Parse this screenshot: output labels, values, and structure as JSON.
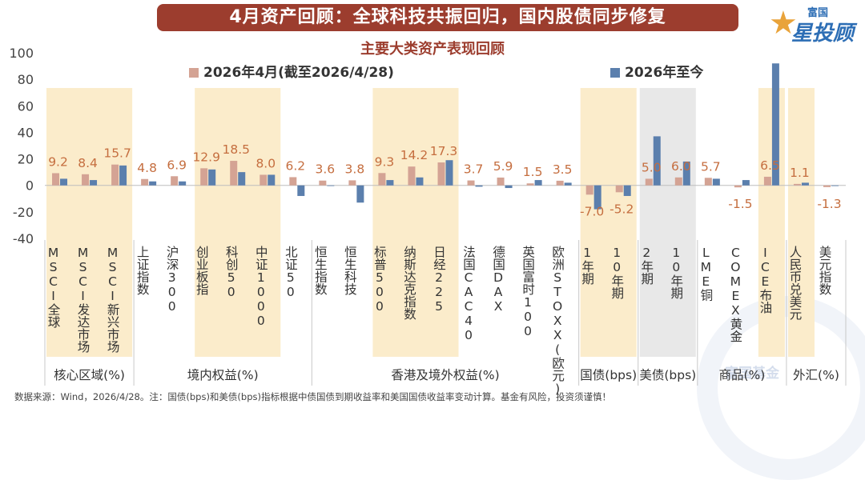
{
  "header": {
    "title": "4月资产回顾：全球科技共振回归，国内股债同步修复"
  },
  "logo": {
    "small": "富国",
    "big": "星投顾"
  },
  "watermark": "富国基金",
  "footnote": "数据来源：Wind，2026/4/28。注：国债(bps)和美债(bps)指标根据中债国债到期收益率和美国国债收益率变动计算。基金有风险，投资须谨慎！",
  "colors": {
    "april": "#d4a394",
    "ytd": "#5b7fad",
    "highlight": "#fbeccb",
    "grey": "#e8e8e8",
    "banner": "#9c3d2e",
    "label": "#c56e3f"
  },
  "chart_data": {
    "type": "bar",
    "title": "主要大类资产表现回顾",
    "ylim": [
      -40,
      100
    ],
    "yticks": [
      "100",
      "80",
      "60",
      "40",
      "20",
      "0",
      "-20",
      "-40"
    ],
    "categories": [
      "MSCI全球",
      "MSCI发达市场",
      "MSCI新兴市场",
      "上证指数",
      "沪深300",
      "创业板指",
      "科创50",
      "中证1000",
      "北证50",
      "恒生指数",
      "恒生科技",
      "标普500",
      "纳斯达克指数",
      "日经225",
      "法国CAC40",
      "德国DAX",
      "英国富时100",
      "欧洲STOXX(欧元)",
      "1年期",
      "10年期",
      "2年期",
      "10年期",
      "LME铜",
      "COMEX黄金",
      "ICE布油",
      "人民币兑美元",
      "美元指数"
    ],
    "series": [
      {
        "name": "2026年4月(截至2026/4/28)",
        "values": [
          9.2,
          8.4,
          15.7,
          4.8,
          6.9,
          12.9,
          18.5,
          8.0,
          6.2,
          3.6,
          3.8,
          9.3,
          14.2,
          17.3,
          3.7,
          5.9,
          1.5,
          3.5,
          -7.0,
          -5.2,
          5.0,
          6.0,
          5.7,
          -1.5,
          6.5,
          1.1,
          -1.3
        ]
      },
      {
        "name": "2026年至今",
        "values": [
          5,
          4,
          15,
          3,
          3,
          12,
          10,
          8,
          -8,
          0,
          -13,
          4,
          6,
          19,
          -1,
          -2,
          4,
          2,
          -18,
          -8,
          37,
          18,
          5,
          4,
          92,
          2,
          -0.5
        ]
      }
    ],
    "data_labels": [
      "9.2",
      "8.4",
      "15.7",
      "4.8",
      "6.9",
      "12.9",
      "18.5",
      "8.0",
      "6.2",
      "3.6",
      "3.8",
      "9.3",
      "14.2",
      "17.3",
      "3.7",
      "5.9",
      "1.5",
      "3.5",
      "-7.0",
      "-5.2",
      "5.0",
      "6.0",
      "5.7",
      "-1.5",
      "6.5",
      "1.1",
      "-1.3"
    ],
    "groups": [
      {
        "label": "核心区域(%)",
        "start": 0,
        "end": 2
      },
      {
        "label": "境内权益(%)",
        "start": 3,
        "end": 8
      },
      {
        "label": "香港及境外权益(%)",
        "start": 9,
        "end": 17
      },
      {
        "label": "国债(bps)",
        "start": 18,
        "end": 19
      },
      {
        "label": "美债(bps)",
        "start": 20,
        "end": 21
      },
      {
        "label": "商品(%)",
        "start": 22,
        "end": 24
      },
      {
        "label": "外汇(%)",
        "start": 25,
        "end": 26
      }
    ],
    "highlight_bands": [
      [
        0,
        2
      ],
      [
        5,
        7
      ],
      [
        11,
        13
      ],
      [
        18,
        19
      ],
      [
        24,
        24
      ],
      [
        25,
        25
      ]
    ],
    "grey_bands": [
      [
        20,
        21
      ]
    ],
    "grid": false,
    "legend_position": "top"
  }
}
